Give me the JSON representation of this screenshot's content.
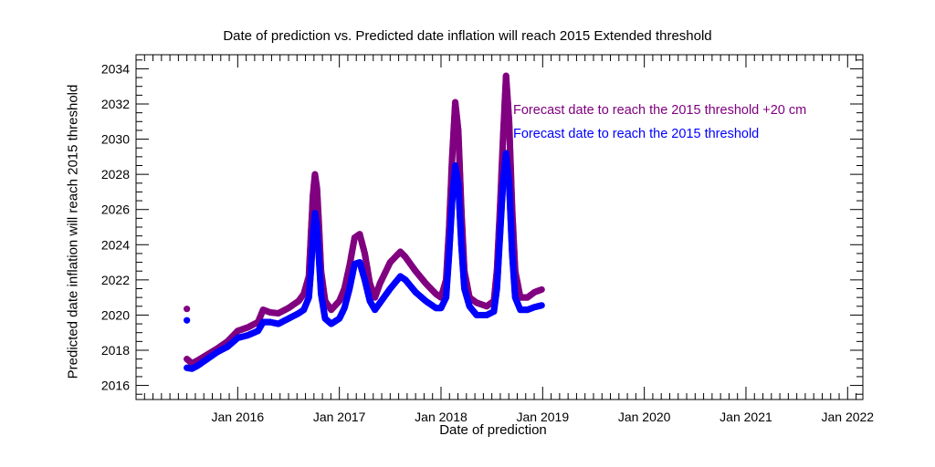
{
  "chart_data": {
    "type": "scatter",
    "title": "Date of prediction vs. Predicted date inflation will reach 2015 Extended threshold",
    "xlabel": "Date of prediction",
    "ylabel": "Predicted date inflation will reach 2015 threshold",
    "xlim": [
      2015.0,
      2022.15
    ],
    "ylim": [
      2015.2,
      2034.8
    ],
    "x_ticks": [
      2016,
      2017,
      2018,
      2019,
      2020,
      2021,
      2022
    ],
    "x_tick_labels": [
      "Jan 2016",
      "Jan 2017",
      "Jan 2018",
      "Jan 2019",
      "Jan 2020",
      "Jan 2021",
      "Jan 2022"
    ],
    "y_ticks": [
      2016,
      2018,
      2020,
      2022,
      2024,
      2026,
      2028,
      2030,
      2032,
      2034
    ],
    "y_tick_labels": [
      "2016",
      "2018",
      "2020",
      "2022",
      "2024",
      "2026",
      "2028",
      "2030",
      "2032",
      "2034"
    ],
    "grid": false,
    "legend_position": "top-right of data",
    "series": [
      {
        "name": "Forecast date to reach the 2015 threshold +20 cm",
        "color": "#800080",
        "points": [
          [
            2015.5,
            2020.35
          ],
          [
            2015.5,
            2017.5
          ],
          [
            2015.55,
            2017.25
          ],
          [
            2015.6,
            2017.4
          ],
          [
            2015.7,
            2017.75
          ],
          [
            2015.8,
            2018.1
          ],
          [
            2015.9,
            2018.5
          ],
          [
            2016.0,
            2019.1
          ],
          [
            2016.1,
            2019.3
          ],
          [
            2016.2,
            2019.6
          ],
          [
            2016.25,
            2020.3
          ],
          [
            2016.32,
            2020.15
          ],
          [
            2016.4,
            2020.1
          ],
          [
            2016.5,
            2020.4
          ],
          [
            2016.6,
            2020.8
          ],
          [
            2016.65,
            2021.2
          ],
          [
            2016.7,
            2022.2
          ],
          [
            2016.72,
            2024.5
          ],
          [
            2016.74,
            2026.8
          ],
          [
            2016.76,
            2028.0
          ],
          [
            2016.78,
            2027.2
          ],
          [
            2016.8,
            2025.0
          ],
          [
            2016.82,
            2022.5
          ],
          [
            2016.86,
            2020.8
          ],
          [
            2016.92,
            2020.3
          ],
          [
            2017.0,
            2020.8
          ],
          [
            2017.05,
            2021.5
          ],
          [
            2017.1,
            2022.8
          ],
          [
            2017.15,
            2024.4
          ],
          [
            2017.2,
            2024.6
          ],
          [
            2017.25,
            2023.5
          ],
          [
            2017.3,
            2021.8
          ],
          [
            2017.35,
            2021.0
          ],
          [
            2017.4,
            2021.8
          ],
          [
            2017.5,
            2023.0
          ],
          [
            2017.6,
            2023.6
          ],
          [
            2017.65,
            2023.3
          ],
          [
            2017.75,
            2022.5
          ],
          [
            2017.85,
            2021.8
          ],
          [
            2017.95,
            2021.2
          ],
          [
            2018.0,
            2021.0
          ],
          [
            2018.05,
            2022.0
          ],
          [
            2018.08,
            2025.0
          ],
          [
            2018.11,
            2029.0
          ],
          [
            2018.14,
            2032.1
          ],
          [
            2018.17,
            2030.5
          ],
          [
            2018.2,
            2026.0
          ],
          [
            2018.23,
            2022.5
          ],
          [
            2018.28,
            2021.0
          ],
          [
            2018.35,
            2020.7
          ],
          [
            2018.45,
            2020.5
          ],
          [
            2018.52,
            2020.8
          ],
          [
            2018.55,
            2022.5
          ],
          [
            2018.58,
            2026.0
          ],
          [
            2018.61,
            2030.0
          ],
          [
            2018.64,
            2033.6
          ],
          [
            2018.67,
            2031.0
          ],
          [
            2018.7,
            2026.0
          ],
          [
            2018.73,
            2022.5
          ],
          [
            2018.78,
            2021.0
          ],
          [
            2018.85,
            2021.0
          ],
          [
            2018.92,
            2021.3
          ],
          [
            2018.99,
            2021.45
          ]
        ]
      },
      {
        "name": "Forecast date to reach the 2015 threshold",
        "color": "#0000ff",
        "points": [
          [
            2015.5,
            2019.7
          ],
          [
            2015.5,
            2017.0
          ],
          [
            2015.55,
            2016.95
          ],
          [
            2015.6,
            2017.1
          ],
          [
            2015.7,
            2017.5
          ],
          [
            2015.8,
            2017.9
          ],
          [
            2015.9,
            2018.2
          ],
          [
            2016.0,
            2018.7
          ],
          [
            2016.1,
            2018.85
          ],
          [
            2016.2,
            2019.1
          ],
          [
            2016.25,
            2019.6
          ],
          [
            2016.32,
            2019.6
          ],
          [
            2016.4,
            2019.5
          ],
          [
            2016.5,
            2019.8
          ],
          [
            2016.6,
            2020.1
          ],
          [
            2016.65,
            2020.3
          ],
          [
            2016.7,
            2021.0
          ],
          [
            2016.72,
            2022.5
          ],
          [
            2016.74,
            2024.5
          ],
          [
            2016.76,
            2025.8
          ],
          [
            2016.78,
            2025.0
          ],
          [
            2016.8,
            2023.2
          ],
          [
            2016.82,
            2021.2
          ],
          [
            2016.86,
            2019.8
          ],
          [
            2016.92,
            2019.5
          ],
          [
            2017.0,
            2019.8
          ],
          [
            2017.05,
            2020.4
          ],
          [
            2017.1,
            2021.5
          ],
          [
            2017.15,
            2022.9
          ],
          [
            2017.2,
            2023.0
          ],
          [
            2017.25,
            2022.0
          ],
          [
            2017.3,
            2020.8
          ],
          [
            2017.35,
            2020.3
          ],
          [
            2017.4,
            2020.7
          ],
          [
            2017.5,
            2021.5
          ],
          [
            2017.6,
            2022.2
          ],
          [
            2017.65,
            2022.0
          ],
          [
            2017.75,
            2021.3
          ],
          [
            2017.85,
            2020.8
          ],
          [
            2017.95,
            2020.4
          ],
          [
            2018.0,
            2020.4
          ],
          [
            2018.05,
            2021.0
          ],
          [
            2018.08,
            2023.5
          ],
          [
            2018.11,
            2026.5
          ],
          [
            2018.14,
            2028.5
          ],
          [
            2018.17,
            2027.5
          ],
          [
            2018.2,
            2024.0
          ],
          [
            2018.23,
            2021.5
          ],
          [
            2018.28,
            2020.5
          ],
          [
            2018.35,
            2020.0
          ],
          [
            2018.45,
            2020.0
          ],
          [
            2018.52,
            2020.2
          ],
          [
            2018.55,
            2021.5
          ],
          [
            2018.58,
            2024.5
          ],
          [
            2018.61,
            2027.5
          ],
          [
            2018.64,
            2029.2
          ],
          [
            2018.67,
            2027.5
          ],
          [
            2018.7,
            2023.5
          ],
          [
            2018.73,
            2021.0
          ],
          [
            2018.78,
            2020.3
          ],
          [
            2018.85,
            2020.3
          ],
          [
            2018.92,
            2020.45
          ],
          [
            2018.99,
            2020.55
          ]
        ]
      }
    ]
  }
}
